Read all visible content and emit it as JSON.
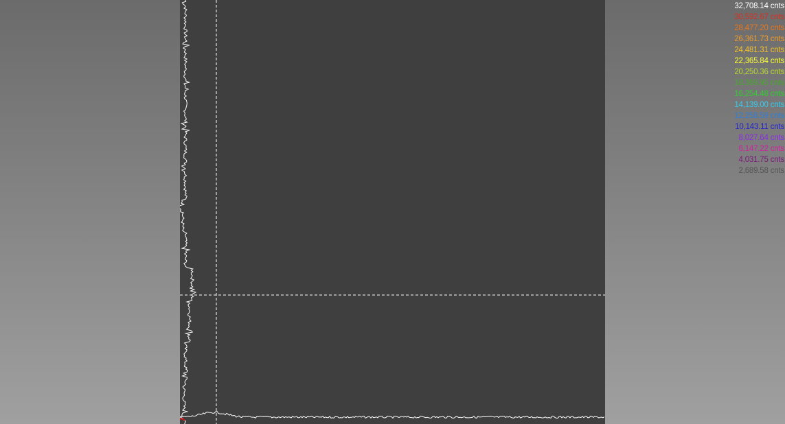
{
  "color_scale": {
    "unit": "cnts",
    "entries": [
      {
        "value": "32,708.14",
        "color": "#ffffff"
      },
      {
        "value": "30,592.67",
        "color": "#d7301f"
      },
      {
        "value": "28,477.20",
        "color": "#e8761e"
      },
      {
        "value": "26,361.73",
        "color": "#f09a2a"
      },
      {
        "value": "24,481.31",
        "color": "#f5c02c"
      },
      {
        "value": "22,365.84",
        "color": "#ffff33"
      },
      {
        "value": "20,250.36",
        "color": "#b8d830"
      },
      {
        "value": "18,369.95",
        "color": "#4aa82e"
      },
      {
        "value": "16,254.48",
        "color": "#33cc33"
      },
      {
        "value": "14,139.00",
        "color": "#33ccee"
      },
      {
        "value": "12,258.59",
        "color": "#2f7fd6"
      },
      {
        "value": "10,143.11",
        "color": "#2222cc"
      },
      {
        "value": "8,027.64",
        "color": "#8a2be2"
      },
      {
        "value": "6,147.22",
        "color": "#d020a0"
      },
      {
        "value": "4,031.75",
        "color": "#7a1a7a"
      },
      {
        "value": "2,689.58",
        "color": "#555555"
      }
    ]
  },
  "viewer": {
    "background": "#3f3f3f",
    "line_color": "#ffffff",
    "origin_marker_color": "#d01010"
  }
}
